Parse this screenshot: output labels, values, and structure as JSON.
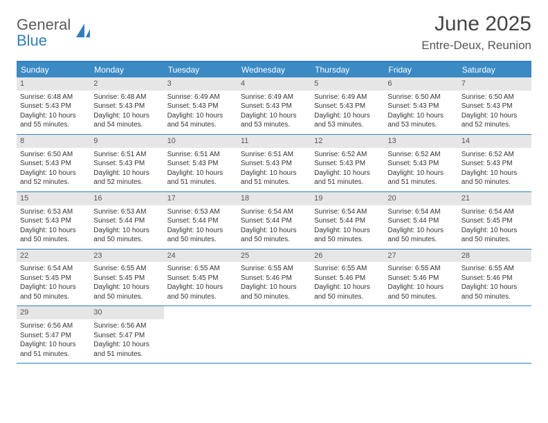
{
  "logo": {
    "text_general": "General",
    "text_blue": "Blue"
  },
  "title": "June 2025",
  "location": "Entre-Deux, Reunion",
  "colors": {
    "header_bar": "#3b8ac4",
    "rule": "#2f7fc2",
    "daynum_bg": "#e6e6e6",
    "text": "#333333",
    "subtext": "#555555"
  },
  "days_of_week": [
    "Sunday",
    "Monday",
    "Tuesday",
    "Wednesday",
    "Thursday",
    "Friday",
    "Saturday"
  ],
  "weeks": [
    [
      {
        "n": "1",
        "sunrise": "Sunrise: 6:48 AM",
        "sunset": "Sunset: 5:43 PM",
        "daylight": "Daylight: 10 hours and 55 minutes."
      },
      {
        "n": "2",
        "sunrise": "Sunrise: 6:48 AM",
        "sunset": "Sunset: 5:43 PM",
        "daylight": "Daylight: 10 hours and 54 minutes."
      },
      {
        "n": "3",
        "sunrise": "Sunrise: 6:49 AM",
        "sunset": "Sunset: 5:43 PM",
        "daylight": "Daylight: 10 hours and 54 minutes."
      },
      {
        "n": "4",
        "sunrise": "Sunrise: 6:49 AM",
        "sunset": "Sunset: 5:43 PM",
        "daylight": "Daylight: 10 hours and 53 minutes."
      },
      {
        "n": "5",
        "sunrise": "Sunrise: 6:49 AM",
        "sunset": "Sunset: 5:43 PM",
        "daylight": "Daylight: 10 hours and 53 minutes."
      },
      {
        "n": "6",
        "sunrise": "Sunrise: 6:50 AM",
        "sunset": "Sunset: 5:43 PM",
        "daylight": "Daylight: 10 hours and 53 minutes."
      },
      {
        "n": "7",
        "sunrise": "Sunrise: 6:50 AM",
        "sunset": "Sunset: 5:43 PM",
        "daylight": "Daylight: 10 hours and 52 minutes."
      }
    ],
    [
      {
        "n": "8",
        "sunrise": "Sunrise: 6:50 AM",
        "sunset": "Sunset: 5:43 PM",
        "daylight": "Daylight: 10 hours and 52 minutes."
      },
      {
        "n": "9",
        "sunrise": "Sunrise: 6:51 AM",
        "sunset": "Sunset: 5:43 PM",
        "daylight": "Daylight: 10 hours and 52 minutes."
      },
      {
        "n": "10",
        "sunrise": "Sunrise: 6:51 AM",
        "sunset": "Sunset: 5:43 PM",
        "daylight": "Daylight: 10 hours and 51 minutes."
      },
      {
        "n": "11",
        "sunrise": "Sunrise: 6:51 AM",
        "sunset": "Sunset: 5:43 PM",
        "daylight": "Daylight: 10 hours and 51 minutes."
      },
      {
        "n": "12",
        "sunrise": "Sunrise: 6:52 AM",
        "sunset": "Sunset: 5:43 PM",
        "daylight": "Daylight: 10 hours and 51 minutes."
      },
      {
        "n": "13",
        "sunrise": "Sunrise: 6:52 AM",
        "sunset": "Sunset: 5:43 PM",
        "daylight": "Daylight: 10 hours and 51 minutes."
      },
      {
        "n": "14",
        "sunrise": "Sunrise: 6:52 AM",
        "sunset": "Sunset: 5:43 PM",
        "daylight": "Daylight: 10 hours and 50 minutes."
      }
    ],
    [
      {
        "n": "15",
        "sunrise": "Sunrise: 6:53 AM",
        "sunset": "Sunset: 5:43 PM",
        "daylight": "Daylight: 10 hours and 50 minutes."
      },
      {
        "n": "16",
        "sunrise": "Sunrise: 6:53 AM",
        "sunset": "Sunset: 5:44 PM",
        "daylight": "Daylight: 10 hours and 50 minutes."
      },
      {
        "n": "17",
        "sunrise": "Sunrise: 6:53 AM",
        "sunset": "Sunset: 5:44 PM",
        "daylight": "Daylight: 10 hours and 50 minutes."
      },
      {
        "n": "18",
        "sunrise": "Sunrise: 6:54 AM",
        "sunset": "Sunset: 5:44 PM",
        "daylight": "Daylight: 10 hours and 50 minutes."
      },
      {
        "n": "19",
        "sunrise": "Sunrise: 6:54 AM",
        "sunset": "Sunset: 5:44 PM",
        "daylight": "Daylight: 10 hours and 50 minutes."
      },
      {
        "n": "20",
        "sunrise": "Sunrise: 6:54 AM",
        "sunset": "Sunset: 5:44 PM",
        "daylight": "Daylight: 10 hours and 50 minutes."
      },
      {
        "n": "21",
        "sunrise": "Sunrise: 6:54 AM",
        "sunset": "Sunset: 5:45 PM",
        "daylight": "Daylight: 10 hours and 50 minutes."
      }
    ],
    [
      {
        "n": "22",
        "sunrise": "Sunrise: 6:54 AM",
        "sunset": "Sunset: 5:45 PM",
        "daylight": "Daylight: 10 hours and 50 minutes."
      },
      {
        "n": "23",
        "sunrise": "Sunrise: 6:55 AM",
        "sunset": "Sunset: 5:45 PM",
        "daylight": "Daylight: 10 hours and 50 minutes."
      },
      {
        "n": "24",
        "sunrise": "Sunrise: 6:55 AM",
        "sunset": "Sunset: 5:45 PM",
        "daylight": "Daylight: 10 hours and 50 minutes."
      },
      {
        "n": "25",
        "sunrise": "Sunrise: 6:55 AM",
        "sunset": "Sunset: 5:46 PM",
        "daylight": "Daylight: 10 hours and 50 minutes."
      },
      {
        "n": "26",
        "sunrise": "Sunrise: 6:55 AM",
        "sunset": "Sunset: 5:46 PM",
        "daylight": "Daylight: 10 hours and 50 minutes."
      },
      {
        "n": "27",
        "sunrise": "Sunrise: 6:55 AM",
        "sunset": "Sunset: 5:46 PM",
        "daylight": "Daylight: 10 hours and 50 minutes."
      },
      {
        "n": "28",
        "sunrise": "Sunrise: 6:55 AM",
        "sunset": "Sunset: 5:46 PM",
        "daylight": "Daylight: 10 hours and 50 minutes."
      }
    ],
    [
      {
        "n": "29",
        "sunrise": "Sunrise: 6:56 AM",
        "sunset": "Sunset: 5:47 PM",
        "daylight": "Daylight: 10 hours and 51 minutes."
      },
      {
        "n": "30",
        "sunrise": "Sunrise: 6:56 AM",
        "sunset": "Sunset: 5:47 PM",
        "daylight": "Daylight: 10 hours and 51 minutes."
      },
      null,
      null,
      null,
      null,
      null
    ]
  ]
}
